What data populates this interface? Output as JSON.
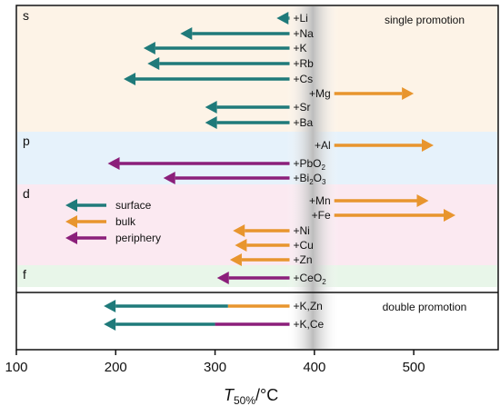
{
  "chart_data": {
    "type": "bar",
    "orientation": "horizontal-arrows",
    "xlabel": "T50%/°C",
    "xlim": [
      100,
      585
    ],
    "xticks": [
      100,
      200,
      300,
      400,
      500
    ],
    "colors": {
      "surface": "#1f7a7a",
      "bulk": "#e8952e",
      "periphery": "#8b1f7a",
      "band_s": "#fdf3e7",
      "band_p": "#e6f2fb",
      "band_d": "#fbe9f1",
      "band_f": "#e8f6e9",
      "center_band": "#c9c9c9"
    },
    "legend": {
      "position": "left, inside d group",
      "entries": [
        {
          "key": "surface",
          "label": "surface"
        },
        {
          "key": "bulk",
          "label": "bulk"
        },
        {
          "key": "periphery",
          "label": "periphery"
        }
      ]
    },
    "annotations": {
      "single": "single promotion",
      "double": "double promotion"
    },
    "groups": [
      {
        "label": "s",
        "band": "band_s",
        "rows": [
          {
            "label": "+Li",
            "start": 375,
            "end": 362,
            "type": "surface"
          },
          {
            "label": "+Na",
            "start": 375,
            "end": 265,
            "type": "surface"
          },
          {
            "label": "+K",
            "start": 375,
            "end": 228,
            "type": "surface"
          },
          {
            "label": "+Rb",
            "start": 375,
            "end": 232,
            "type": "surface"
          },
          {
            "label": "+Cs",
            "start": 375,
            "end": 208,
            "type": "surface"
          },
          {
            "label": "+Mg",
            "start": 420,
            "end": 500,
            "type": "bulk"
          },
          {
            "label": "+Sr",
            "start": 375,
            "end": 290,
            "type": "surface"
          },
          {
            "label": "+Ba",
            "start": 375,
            "end": 290,
            "type": "surface"
          }
        ]
      },
      {
        "label": "p",
        "band": "band_p",
        "rows": [
          {
            "label": "+Al",
            "start": 420,
            "end": 520,
            "type": "bulk"
          },
          {
            "label": "+PbO2",
            "start": 375,
            "end": 192,
            "type": "periphery"
          },
          {
            "label": "+Bi2O3",
            "start": 375,
            "end": 248,
            "type": "periphery"
          }
        ]
      },
      {
        "label": "d",
        "band": "band_d",
        "rows": [
          {
            "label": "+Mn",
            "start": 420,
            "end": 515,
            "type": "bulk"
          },
          {
            "label": "+Fe",
            "start": 420,
            "end": 542,
            "type": "bulk"
          },
          {
            "label": "+Ni",
            "start": 375,
            "end": 318,
            "type": "bulk"
          },
          {
            "label": "+Cu",
            "start": 375,
            "end": 320,
            "type": "bulk"
          },
          {
            "label": "+Zn",
            "start": 375,
            "end": 315,
            "type": "bulk"
          }
        ]
      },
      {
        "label": "f",
        "band": "band_f",
        "rows": [
          {
            "label": "+CeO2",
            "start": 375,
            "end": 302,
            "type": "periphery"
          }
        ]
      },
      {
        "label": "",
        "band": "",
        "double": true,
        "rows": [
          {
            "label": "+K,Zn",
            "start": 375,
            "end": 188,
            "type": "surface",
            "segments": [
              {
                "from": 375,
                "to": 313,
                "type": "bulk"
              },
              {
                "from": 313,
                "to": 188,
                "type": "surface"
              }
            ]
          },
          {
            "label": "+K,Ce",
            "start": 375,
            "end": 188,
            "type": "surface",
            "segments": [
              {
                "from": 375,
                "to": 300,
                "type": "periphery"
              },
              {
                "from": 300,
                "to": 188,
                "type": "surface"
              }
            ]
          }
        ]
      }
    ]
  }
}
